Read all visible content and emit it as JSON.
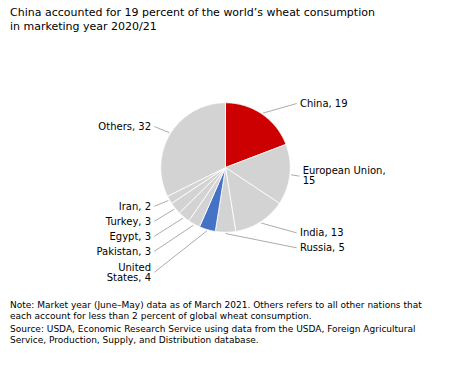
{
  "chart_data": {
    "type": "pie",
    "title": "China accounted for 19 percent of the world’s wheat consumption\nin marketing year 2020/21",
    "categories": [
      "China, 19",
      "European Union,\n15",
      "India, 13",
      "Russia, 5",
      "United\nStates, 4",
      "Pakistan, 3",
      "Egypt, 3",
      "Turkey, 3",
      "Iran, 2",
      "Others, 32"
    ],
    "values": [
      19,
      15,
      13,
      5,
      4,
      3,
      3,
      3,
      2,
      32
    ],
    "colors": [
      "#cc0000",
      "#d3d3d3",
      "#d3d3d3",
      "#d3d3d3",
      "#4472c4",
      "#d3d3d3",
      "#d3d3d3",
      "#d3d3d3",
      "#d3d3d3",
      "#d3d3d3"
    ],
    "annotations": [
      "Note: Market year (June–May) data as of March 2021. Others refers to all other nations that each account for less than 2 percent of global wheat consumption.",
      "Source: USDA, Economic Research Service using data from the USDA, Foreign Agricultural Service, Production, Supply, and Distribution database."
    ]
  }
}
